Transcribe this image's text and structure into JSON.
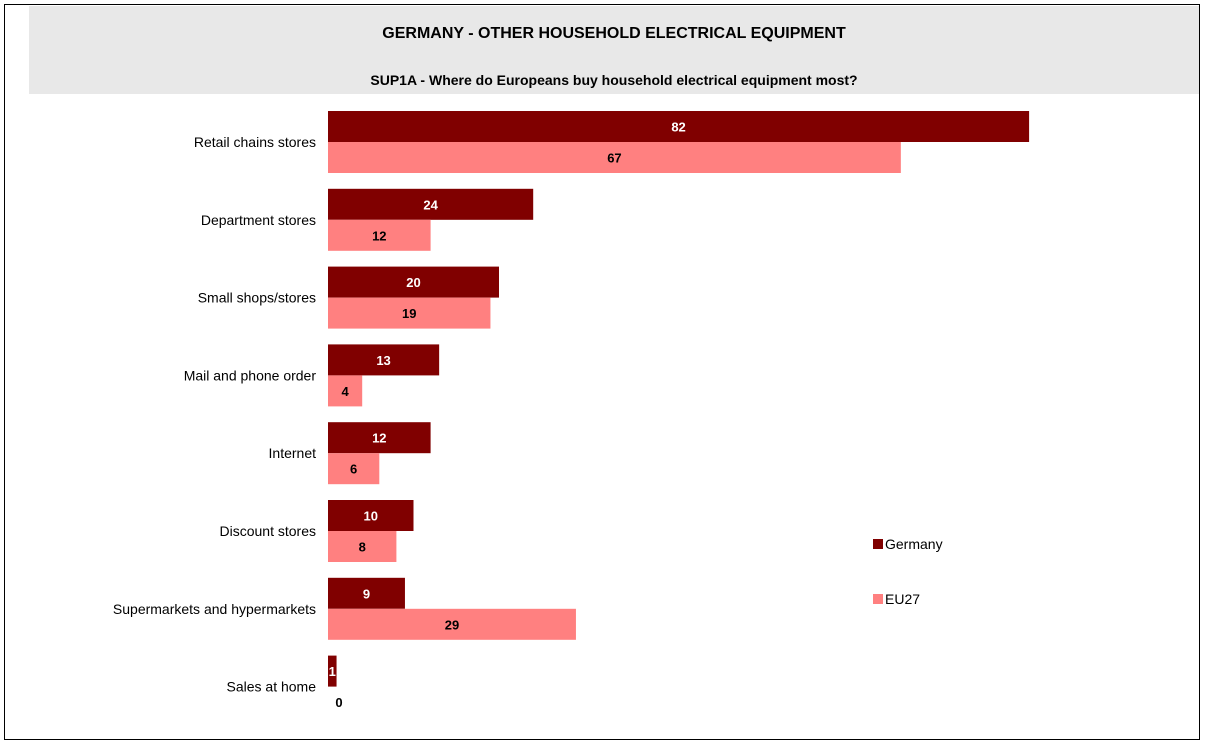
{
  "chart_data": {
    "type": "bar",
    "orientation": "horizontal",
    "title": "GERMANY - OTHER HOUSEHOLD ELECTRICAL EQUIPMENT",
    "subtitle": "SUP1A - Where do Europeans buy household electrical equipment most?",
    "categories": [
      "Retail chains stores",
      "Department stores",
      "Small shops/stores",
      "Mail and phone order",
      "Internet",
      "Discount stores",
      "Supermarkets and hypermarkets",
      "Sales at home"
    ],
    "series": [
      {
        "name": "Germany",
        "color": "#800000",
        "label_color": "#ffffff",
        "values": [
          82,
          24,
          20,
          13,
          12,
          10,
          9,
          1
        ]
      },
      {
        "name": "EU27",
        "color": "#ff8080",
        "label_color": "#000000",
        "values": [
          67,
          12,
          19,
          4,
          6,
          8,
          29,
          0
        ]
      }
    ],
    "xlim": [
      0,
      82
    ],
    "grid": false,
    "legend_position": "right"
  }
}
